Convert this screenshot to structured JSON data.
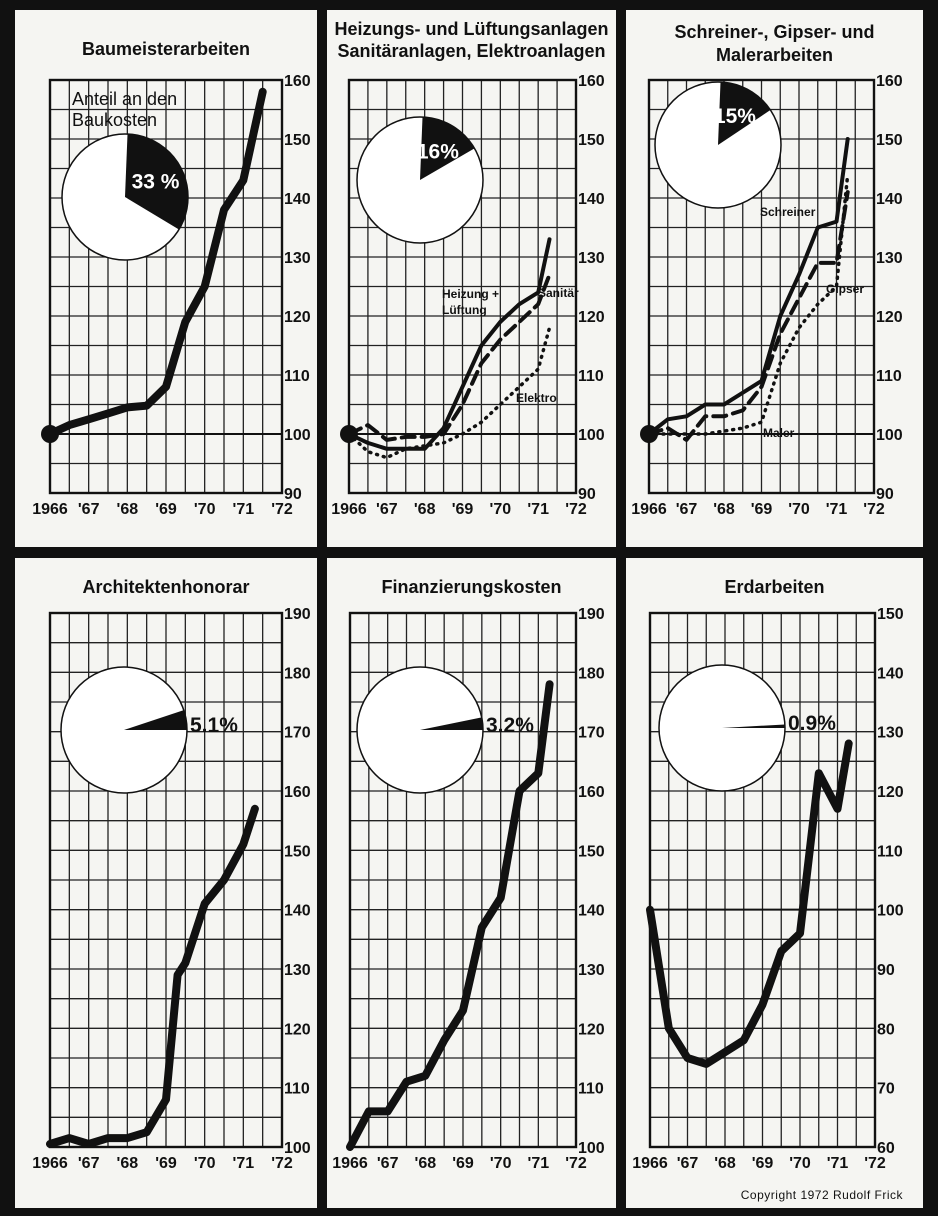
{
  "copyright": "Copyright 1972 Rudolf Frick",
  "chart_data": [
    {
      "type": "line",
      "title": "Baumeisterarbeiten",
      "pie_caption": [
        "Anteil an den",
        "Baukosten"
      ],
      "share_percent": 33,
      "share_label": "33 %",
      "x_ticks": [
        "1966",
        "'67",
        "'68",
        "'69",
        "'70",
        "'71",
        "'72"
      ],
      "y_ticks": [
        90,
        100,
        110,
        120,
        130,
        140,
        150,
        160
      ],
      "ylim": [
        90,
        160
      ],
      "xlim": [
        1966,
        1972
      ],
      "series": [
        {
          "x": [
            1966,
            1966.5,
            1967,
            1967.5,
            1968,
            1968.5,
            1969,
            1969.5,
            1970,
            1970.5,
            1971,
            1971.3,
            1971.5
          ],
          "y": [
            100,
            101.5,
            102.5,
            103.5,
            104.5,
            104.8,
            108,
            119,
            125,
            138,
            143,
            152,
            158
          ]
        }
      ]
    },
    {
      "type": "line",
      "title": "Heizungs- und Lüftungsanlagen Sanitäranlagen, Elektroanlagen",
      "title_lines": [
        "Heizungs- und Lüftungsanlagen",
        "Sanitäranlagen, Elektroanlagen"
      ],
      "share_percent": 16,
      "share_label": "16%",
      "x_ticks": [
        "1966",
        "'67",
        "'68",
        "'69",
        "'70",
        "'71",
        "'72"
      ],
      "y_ticks": [
        90,
        100,
        110,
        120,
        130,
        140,
        150,
        160
      ],
      "ylim": [
        90,
        160
      ],
      "xlim": [
        1966,
        1972
      ],
      "series_labels": [
        "Heizung +",
        "Lüftung",
        "Sanitär",
        "Elektro"
      ],
      "series": [
        {
          "style": "solid",
          "x": [
            1966,
            1966.5,
            1967,
            1967.5,
            1968,
            1968.5,
            1969,
            1969.5,
            1970,
            1970.5,
            1971,
            1971.3
          ],
          "y": [
            100,
            98.5,
            97.5,
            97.5,
            97.5,
            101,
            108,
            115,
            119,
            122,
            124,
            133
          ]
        },
        {
          "style": "dashed",
          "x": [
            1966,
            1966.5,
            1967,
            1967.5,
            1968,
            1968.5,
            1969,
            1969.5,
            1970,
            1970.5,
            1971,
            1971.3
          ],
          "y": [
            100,
            101.5,
            99,
            99.5,
            99.5,
            100,
            105,
            112,
            116,
            119,
            122,
            127
          ]
        },
        {
          "style": "dotted",
          "x": [
            1966,
            1966.5,
            1967,
            1967.5,
            1968,
            1968.5,
            1969,
            1969.5,
            1970,
            1970.5,
            1971,
            1971.3
          ],
          "y": [
            100,
            97,
            96,
            97.5,
            98,
            98.5,
            100,
            102,
            105,
            108,
            111,
            118
          ]
        }
      ]
    },
    {
      "type": "line",
      "title": "Schreiner-, Gipser- und Malerarbeiten",
      "title_lines": [
        "Schreiner-, Gipser- und",
        "Malerarbeiten"
      ],
      "share_percent": 15,
      "share_label": "15%",
      "x_ticks": [
        "1966",
        "'67",
        "'68",
        "'69",
        "'70",
        "'71",
        "'72"
      ],
      "y_ticks": [
        90,
        100,
        110,
        120,
        130,
        140,
        150,
        160
      ],
      "ylim": [
        90,
        160
      ],
      "xlim": [
        1966,
        1972
      ],
      "series_labels": [
        "Schreiner",
        "Gipser",
        "Maler"
      ],
      "series": [
        {
          "style": "solid",
          "x": [
            1966,
            1966.5,
            1967,
            1967.5,
            1968,
            1968.5,
            1969,
            1969.5,
            1970,
            1970.5,
            1971,
            1971.3
          ],
          "y": [
            100,
            102.5,
            103,
            105,
            105,
            107,
            109,
            120,
            127,
            135,
            136,
            150
          ]
        },
        {
          "style": "dashed",
          "x": [
            1966,
            1966.5,
            1967,
            1967.5,
            1968,
            1968.5,
            1969,
            1969.5,
            1970,
            1970.5,
            1971,
            1971.3
          ],
          "y": [
            100,
            101,
            99,
            103,
            103,
            104,
            108,
            117,
            123,
            129,
            129,
            141
          ]
        },
        {
          "style": "dotted",
          "x": [
            1966,
            1966.5,
            1967,
            1967.5,
            1968,
            1968.5,
            1969,
            1969.5,
            1970,
            1970.5,
            1971,
            1971.3
          ],
          "y": [
            100,
            100,
            100,
            100,
            100.5,
            101,
            102,
            112,
            118,
            122,
            125,
            144
          ]
        }
      ]
    },
    {
      "type": "line",
      "title": "Architektenhonorar",
      "share_percent": 5.1,
      "share_label": "5.1%",
      "x_ticks": [
        "1966",
        "'67",
        "'68",
        "'69",
        "'70",
        "'71",
        "'72"
      ],
      "y_ticks": [
        100,
        110,
        120,
        130,
        140,
        150,
        160,
        170,
        180,
        190
      ],
      "ylim": [
        100,
        190
      ],
      "xlim": [
        1966,
        1972
      ],
      "series": [
        {
          "x": [
            1966,
            1966.5,
            1967,
            1967.5,
            1968,
            1968.5,
            1969,
            1969.3,
            1969.5,
            1970,
            1970.5,
            1971,
            1971.3
          ],
          "y": [
            100.5,
            101.5,
            100.5,
            101.5,
            101.5,
            102.5,
            108,
            129,
            131,
            141,
            145,
            151,
            157
          ]
        }
      ]
    },
    {
      "type": "line",
      "title": "Finanzierungskosten",
      "share_percent": 3.2,
      "share_label": "3.2%",
      "x_ticks": [
        "1966",
        "'67",
        "'68",
        "'69",
        "'70",
        "'71",
        "'72"
      ],
      "y_ticks": [
        100,
        110,
        120,
        130,
        140,
        150,
        160,
        170,
        180,
        190
      ],
      "ylim": [
        100,
        190
      ],
      "xlim": [
        1966,
        1972
      ],
      "series": [
        {
          "x": [
            1966,
            1966.5,
            1967,
            1967.5,
            1968,
            1968.5,
            1969,
            1969.5,
            1970,
            1970.5,
            1971,
            1971.3
          ],
          "y": [
            100,
            106,
            106,
            111,
            112,
            118,
            123,
            137,
            142,
            160,
            163,
            178
          ]
        }
      ]
    },
    {
      "type": "line",
      "title": "Erdarbeiten",
      "share_percent": 0.9,
      "share_label": "0.9%",
      "x_ticks": [
        "1966",
        "'67",
        "'68",
        "'69",
        "'70",
        "'71",
        "'72"
      ],
      "y_ticks": [
        60,
        70,
        80,
        90,
        100,
        110,
        120,
        130,
        140,
        150
      ],
      "ylim": [
        60,
        150
      ],
      "xlim": [
        1966,
        1972
      ],
      "series": [
        {
          "x": [
            1966,
            1966.5,
            1967,
            1967.5,
            1968,
            1968.5,
            1969,
            1969.5,
            1970,
            1970.5,
            1971,
            1971.3
          ],
          "y": [
            100,
            80,
            75,
            74,
            76,
            78,
            84,
            93,
            96,
            123,
            117,
            128
          ]
        }
      ]
    }
  ]
}
